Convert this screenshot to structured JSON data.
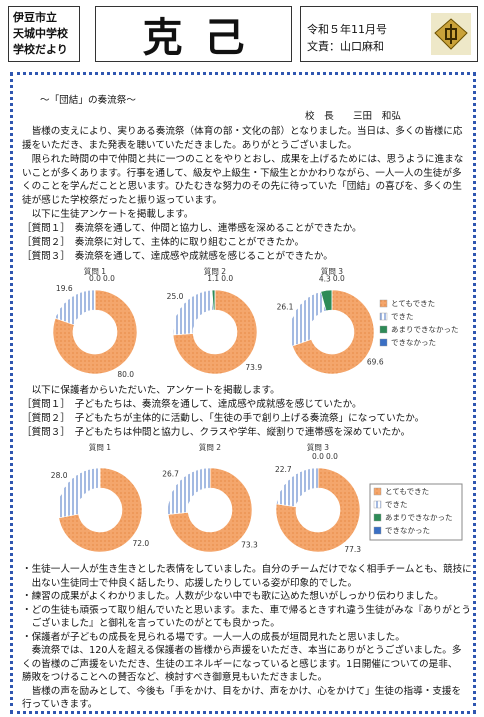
{
  "header": {
    "school": [
      "伊豆市立",
      "天城中学校",
      "学校だより"
    ],
    "title": "克己",
    "issue": "令和５年11月号",
    "author": "文責：山口麻和"
  },
  "article": {
    "heading": "～「団結」の奏流祭～",
    "principal": "校　長　　三田　和弘",
    "paragraphs": [
      "皆様の支えにより、実りある奏流祭（体育の部・文化の部）となりました。当日は、多くの皆様に応援をいただき、また発表を聴いていただきました。ありがとうございました。",
      "限られた時間の中で仲間と共に一つのことをやりとおし、成果を上げるためには、思うように進まないことが多くあります。行事を通して、級友や上級生・下級生とかかわりながら、一人一人の生徒が多くのことを学んだことと思います。ひたむきな努力のその先に待っていた「団結」の喜びを、多くの生徒が感じた学校祭だったと振り返っています。",
      "以下に生徒アンケートを掲載します。"
    ],
    "student_questions": [
      "［質問１］　奏流祭を通して、仲間と協力し、連帯感を深めることができたか。",
      "［質問２］　奏流祭に対して、主体的に取り組むことができたか。",
      "［質問３］　奏流祭を通して、達成感や成就感を感じることができたか。"
    ],
    "parent_intro": "以下に保護者からいただいた、アンケートを掲載します。",
    "parent_questions": [
      "［質問１］　子どもたちは、奏流祭を通して、達成感や成就感を感じていたか。",
      "［質問２］　子どもたちが主体的に活動し、「生徒の手で創り上げる奏流祭」になっていたか。",
      "［質問３］　子どもたちは仲間と協力し、クラスや学年、縦割りで連帯感を深めていたか。"
    ],
    "comments": [
      "・生徒一人一人が生き生きとした表情をしていました。自分のチームだけでなく相手チームとも、競技に出ない生徒同士で仲良く話したり、応援したりしている姿が印象的でした。",
      "・練習の成果がよくわかりました。人数が少ない中でも歌に込めた想いがしっかり伝わりました。",
      "・どの生徒も頑張って取り組んでいたと思います。また、車で帰るときすれ違う生徒がみな『ありがとうございました』と御礼を言っていたのがとても良かった。",
      "・保護者が子どもの成長を見られる場です。一人一人の成長が垣間見れたと思いました。"
    ],
    "closing": [
      "奏流祭では、120人を超える保護者の皆様から声援をいただき、本当にありがとうございました。多くの皆様のご声援をいただき、生徒のエネルギーになっていると感じます。1日開催についての是非、勝敗をつけることへの賛否など、検討すべき御意見もいただきました。",
      "皆様の声を励みとして、今後も「手をかけ、目をかけ、声をかけ、心をかけて」生徒の指導・支援を行っていきます。"
    ]
  },
  "chart_data": [
    {
      "type": "donut",
      "title": "質問 1",
      "categories": [
        "とてもできた",
        "できた",
        "あまりできなかった",
        "できなかった"
      ],
      "colors": [
        "#f4a66c",
        "#dfe8f6",
        "#2e8b57",
        "#3a6fc4"
      ],
      "values": [
        80.0,
        19.6,
        0.0,
        0.0
      ],
      "value_labels": [
        "80.0",
        "19.6",
        "0.0",
        "0.0"
      ]
    },
    {
      "type": "donut",
      "title": "質問 2",
      "categories": [
        "とてもできた",
        "できた",
        "あまりできなかった",
        "できなかった"
      ],
      "colors": [
        "#f4a66c",
        "#dfe8f6",
        "#2e8b57",
        "#3a6fc4"
      ],
      "values": [
        73.9,
        25.0,
        1.1,
        0.0
      ],
      "value_labels": [
        "73.9",
        "25.0",
        "1.1",
        "0.0"
      ]
    },
    {
      "type": "donut",
      "title": "質問 3",
      "categories": [
        "とてもできた",
        "できた",
        "あまりできなかった",
        "できなかった"
      ],
      "colors": [
        "#f4a66c",
        "#dfe8f6",
        "#2e8b57",
        "#3a6fc4"
      ],
      "values": [
        69.6,
        26.1,
        4.3,
        0.0
      ],
      "value_labels": [
        "69.6",
        "26.1",
        "4.3",
        "0.0"
      ]
    },
    {
      "type": "donut",
      "title": "質問 1",
      "categories": [
        "とてもできた",
        "できた",
        "あまりできなかった",
        "できなかった"
      ],
      "colors": [
        "#f4a66c",
        "#dfe8f6",
        "#2e8b57",
        "#3a6fc4"
      ],
      "values": [
        72.0,
        28.0,
        0,
        0
      ],
      "value_labels": [
        "72.0",
        "28.0",
        null,
        null
      ]
    },
    {
      "type": "donut",
      "title": "質問 2",
      "categories": [
        "とてもできた",
        "できた",
        "あまりできなかった",
        "できなかった"
      ],
      "colors": [
        "#f4a66c",
        "#dfe8f6",
        "#2e8b57",
        "#3a6fc4"
      ],
      "values": [
        73.3,
        26.7,
        0,
        0
      ],
      "value_labels": [
        "73.3",
        "26.7",
        null,
        null
      ]
    },
    {
      "type": "donut",
      "title": "質問 3",
      "categories": [
        "とてもできた",
        "できた",
        "あまりできなかった",
        "できなかった"
      ],
      "colors": [
        "#f4a66c",
        "#dfe8f6",
        "#2e8b57",
        "#3a6fc4"
      ],
      "values": [
        77.3,
        22.7,
        0.0,
        0.0
      ],
      "value_labels": [
        "77.3",
        "22.7",
        "0.0",
        "0.0"
      ]
    }
  ]
}
